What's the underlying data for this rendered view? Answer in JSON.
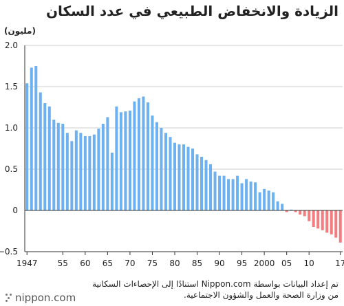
{
  "title": "الزيادة والانخفاض الطبيعي في عدد السكان",
  "unit_label": "(مليون)",
  "source_text": "تم إعداد البيانات بواسطة Nippon.com استنادًا إلى الإحصاءات السكانية من وزارة الصحة والعمل والشؤون الاجتماعية.",
  "brand": "nippon.com",
  "colors": {
    "positive": "#6eb1f0",
    "negative": "#f47d80",
    "axis": "#333333",
    "grid": "#cfcfcf"
  },
  "chart_data": {
    "type": "bar",
    "x": [
      1947,
      1948,
      1949,
      1950,
      1951,
      1952,
      1953,
      1954,
      1955,
      1956,
      1957,
      1958,
      1959,
      1960,
      1961,
      1962,
      1963,
      1964,
      1965,
      1966,
      1967,
      1968,
      1969,
      1970,
      1971,
      1972,
      1973,
      1974,
      1975,
      1976,
      1977,
      1978,
      1979,
      1980,
      1981,
      1982,
      1983,
      1984,
      1985,
      1986,
      1987,
      1988,
      1989,
      1990,
      1991,
      1992,
      1993,
      1994,
      1995,
      1996,
      1997,
      1998,
      1999,
      2000,
      2001,
      2002,
      2003,
      2004,
      2005,
      2006,
      2007,
      2008,
      2009,
      2010,
      2011,
      2012,
      2013,
      2014,
      2015,
      2016,
      2017
    ],
    "values": [
      1.54,
      1.73,
      1.75,
      1.43,
      1.3,
      1.26,
      1.1,
      1.06,
      1.05,
      0.94,
      0.84,
      0.97,
      0.94,
      0.9,
      0.9,
      0.92,
      0.99,
      1.05,
      1.13,
      0.7,
      1.26,
      1.19,
      1.2,
      1.21,
      1.32,
      1.36,
      1.38,
      1.31,
      1.15,
      1.07,
      1.0,
      0.94,
      0.89,
      0.82,
      0.8,
      0.8,
      0.77,
      0.75,
      0.68,
      0.65,
      0.61,
      0.56,
      0.47,
      0.42,
      0.42,
      0.38,
      0.38,
      0.42,
      0.33,
      0.38,
      0.35,
      0.34,
      0.22,
      0.26,
      0.24,
      0.22,
      0.11,
      0.08,
      -0.02,
      0.01,
      -0.02,
      -0.05,
      -0.07,
      -0.13,
      -0.2,
      -0.22,
      -0.24,
      -0.27,
      -0.29,
      -0.33,
      -0.39
    ],
    "xtick_labels": [
      "1947",
      "55",
      "60",
      "65",
      "70",
      "75",
      "80",
      "85",
      "90",
      "95",
      "2000",
      "05",
      "10",
      "17"
    ],
    "xtick_years": [
      1947,
      1955,
      1960,
      1965,
      1970,
      1975,
      1980,
      1985,
      1990,
      1995,
      2000,
      2005,
      2010,
      2017
    ],
    "ytick_labels": [
      "2.0",
      "1.5",
      "1.0",
      "0.5",
      "0",
      "−0.5"
    ],
    "ytick_values": [
      2.0,
      1.5,
      1.0,
      0.5,
      0,
      -0.5
    ],
    "ylim": [
      -0.5,
      2.0
    ],
    "grid": true
  }
}
